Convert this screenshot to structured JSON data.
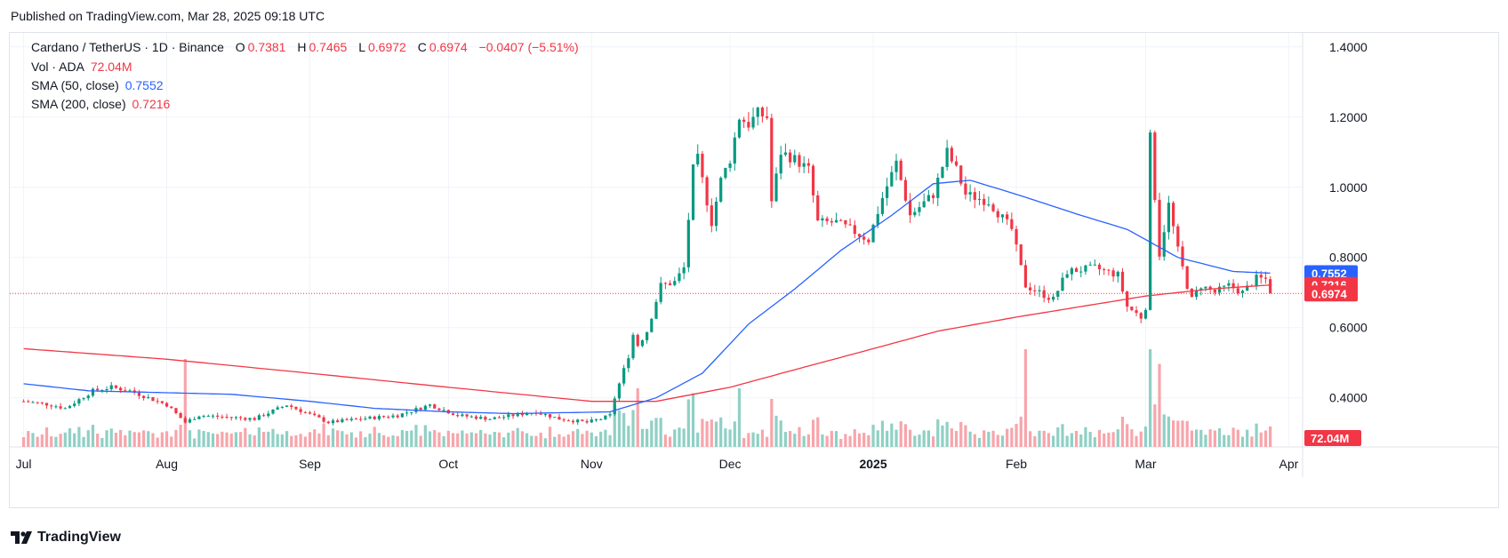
{
  "header": {
    "published": "Published on TradingView.com, Mar 28, 2025 09:18 UTC"
  },
  "legend": {
    "symbol": "Cardano / TetherUS · 1D · Binance",
    "o_label": "O",
    "o_value": "0.7381",
    "h_label": "H",
    "h_value": "0.7465",
    "l_label": "L",
    "l_value": "0.6972",
    "c_label": "C",
    "c_value": "0.6974",
    "change": "−0.0407 (−5.51%)",
    "vol_label": "Vol · ADA",
    "vol_value": "72.04M",
    "sma50_label": "SMA (50, close)",
    "sma50_value": "0.7552",
    "sma200_label": "SMA (200, close)",
    "sma200_value": "0.7216"
  },
  "footer": {
    "brand": "TradingView"
  },
  "colors": {
    "up": "#089981",
    "down": "#f23645",
    "up_vol": "#8fd0c5",
    "down_vol": "#f7a5ab",
    "sma50": "#2962ff",
    "sma200": "#f23645",
    "grid": "#f0f3fa",
    "text": "#131722"
  },
  "chart_data": {
    "type": "candlestick",
    "title": "Cardano / TetherUS · 1D · Binance",
    "y_ticks": [
      "0.4000",
      "0.6000",
      "0.8000",
      "1.0000",
      "1.2000",
      "1.4000"
    ],
    "x_ticks": [
      "Jul",
      "Aug",
      "Sep",
      "Oct",
      "Nov",
      "Dec",
      "2025",
      "Feb",
      "Mar",
      "Apr"
    ],
    "ylim": [
      0.26,
      1.44
    ],
    "grid": true,
    "last": {
      "open": 0.7381,
      "high": 0.7465,
      "low": 0.6972,
      "close": 0.6974,
      "volume": "72.04M"
    },
    "price_labels": [
      {
        "text": "0.7552",
        "value": 0.7552,
        "series": "sma50"
      },
      {
        "text": "0.7216",
        "value": 0.7216,
        "series": "sma200"
      },
      {
        "text": "0.6974",
        "value": 0.6974,
        "series": "last"
      }
    ],
    "volume_label": "72.04M",
    "close_anchors": [
      [
        "2024-07-01",
        0.39
      ],
      [
        "2024-07-07",
        0.38
      ],
      [
        "2024-07-10",
        0.37
      ],
      [
        "2024-07-16",
        0.42
      ],
      [
        "2024-07-20",
        0.43
      ],
      [
        "2024-07-24",
        0.42
      ],
      [
        "2024-08-01",
        0.38
      ],
      [
        "2024-08-05",
        0.33
      ],
      [
        "2024-08-08",
        0.35
      ],
      [
        "2024-08-20",
        0.34
      ],
      [
        "2024-08-27",
        0.38
      ],
      [
        "2024-09-05",
        0.33
      ],
      [
        "2024-09-12",
        0.34
      ],
      [
        "2024-09-20",
        0.35
      ],
      [
        "2024-09-27",
        0.38
      ],
      [
        "2024-10-03",
        0.35
      ],
      [
        "2024-10-10",
        0.34
      ],
      [
        "2024-10-20",
        0.36
      ],
      [
        "2024-10-25",
        0.34
      ],
      [
        "2024-10-31",
        0.33
      ],
      [
        "2024-11-03",
        0.34
      ],
      [
        "2024-11-05",
        0.35
      ],
      [
        "2024-11-06",
        0.4
      ],
      [
        "2024-11-09",
        0.52
      ],
      [
        "2024-11-10",
        0.58
      ],
      [
        "2024-11-11",
        0.55
      ],
      [
        "2024-11-13",
        0.59
      ],
      [
        "2024-11-16",
        0.72
      ],
      [
        "2024-11-19",
        0.73
      ],
      [
        "2024-11-21",
        0.77
      ],
      [
        "2024-11-23",
        1.05
      ],
      [
        "2024-11-24",
        1.08
      ],
      [
        "2024-11-27",
        0.9
      ],
      [
        "2024-11-29",
        1.02
      ],
      [
        "2024-12-01",
        1.08
      ],
      [
        "2024-12-03",
        1.2
      ],
      [
        "2024-12-05",
        1.18
      ],
      [
        "2024-12-07",
        1.21
      ],
      [
        "2024-12-09",
        1.2
      ],
      [
        "2024-12-10",
        0.96
      ],
      [
        "2024-12-12",
        1.1
      ],
      [
        "2024-12-15",
        1.08
      ],
      [
        "2024-12-18",
        1.05
      ],
      [
        "2024-12-20",
        0.9
      ],
      [
        "2024-12-24",
        0.9
      ],
      [
        "2024-12-27",
        0.88
      ],
      [
        "2024-12-31",
        0.85
      ],
      [
        "2025-01-03",
        0.97
      ],
      [
        "2025-01-06",
        1.07
      ],
      [
        "2025-01-09",
        0.92
      ],
      [
        "2025-01-14",
        0.98
      ],
      [
        "2025-01-17",
        1.1
      ],
      [
        "2025-01-19",
        1.05
      ],
      [
        "2025-01-21",
        0.98
      ],
      [
        "2025-01-26",
        0.96
      ],
      [
        "2025-01-31",
        0.88
      ],
      [
        "2025-02-02",
        0.77
      ],
      [
        "2025-02-03",
        0.72
      ],
      [
        "2025-02-06",
        0.7
      ],
      [
        "2025-02-09",
        0.68
      ],
      [
        "2025-02-12",
        0.76
      ],
      [
        "2025-02-18",
        0.77
      ],
      [
        "2025-02-23",
        0.75
      ],
      [
        "2025-02-25",
        0.66
      ],
      [
        "2025-02-28",
        0.63
      ],
      [
        "2025-03-01",
        0.66
      ],
      [
        "2025-03-02",
        1.14
      ],
      [
        "2025-03-04",
        0.81
      ],
      [
        "2025-03-06",
        0.95
      ],
      [
        "2025-03-08",
        0.82
      ],
      [
        "2025-03-10",
        0.72
      ],
      [
        "2025-03-11",
        0.68
      ],
      [
        "2025-03-13",
        0.72
      ],
      [
        "2025-03-16",
        0.7
      ],
      [
        "2025-03-19",
        0.72
      ],
      [
        "2025-03-22",
        0.7
      ],
      [
        "2025-03-25",
        0.74
      ],
      [
        "2025-03-27",
        0.7381
      ],
      [
        "2025-03-28",
        0.6974
      ]
    ],
    "sma50_anchors": [
      [
        "2024-07-01",
        0.44
      ],
      [
        "2024-07-15",
        0.42
      ],
      [
        "2024-08-15",
        0.41
      ],
      [
        "2024-09-01",
        0.39
      ],
      [
        "2024-09-15",
        0.37
      ],
      [
        "2024-10-01",
        0.36
      ],
      [
        "2024-10-15",
        0.355
      ],
      [
        "2024-11-05",
        0.36
      ],
      [
        "2024-11-15",
        0.4
      ],
      [
        "2024-11-25",
        0.47
      ],
      [
        "2024-12-05",
        0.61
      ],
      [
        "2024-12-15",
        0.71
      ],
      [
        "2024-12-25",
        0.82
      ],
      [
        "2025-01-05",
        0.92
      ],
      [
        "2025-01-14",
        1.01
      ],
      [
        "2025-01-22",
        1.02
      ],
      [
        "2025-02-01",
        0.98
      ],
      [
        "2025-02-15",
        0.92
      ],
      [
        "2025-02-25",
        0.88
      ],
      [
        "2025-03-08",
        0.8
      ],
      [
        "2025-03-20",
        0.76
      ],
      [
        "2025-03-28",
        0.7552
      ]
    ],
    "sma200_anchors": [
      [
        "2024-07-01",
        0.54
      ],
      [
        "2024-08-01",
        0.51
      ],
      [
        "2024-09-01",
        0.47
      ],
      [
        "2024-10-01",
        0.43
      ],
      [
        "2024-11-01",
        0.39
      ],
      [
        "2024-11-15",
        0.39
      ],
      [
        "2024-12-01",
        0.43
      ],
      [
        "2024-12-15",
        0.48
      ],
      [
        "2025-01-01",
        0.54
      ],
      [
        "2025-01-15",
        0.59
      ],
      [
        "2025-02-01",
        0.63
      ],
      [
        "2025-02-15",
        0.66
      ],
      [
        "2025-03-01",
        0.69
      ],
      [
        "2025-03-15",
        0.71
      ],
      [
        "2025-03-28",
        0.7216
      ]
    ],
    "volume_spikes": [
      [
        "2024-08-05",
        0.9
      ],
      [
        "2024-11-11",
        0.6
      ],
      [
        "2024-11-23",
        0.55
      ],
      [
        "2024-12-03",
        0.6
      ],
      [
        "2025-02-03",
        1.0
      ],
      [
        "2025-03-02",
        1.0
      ],
      [
        "2025-03-04",
        0.85
      ]
    ]
  }
}
